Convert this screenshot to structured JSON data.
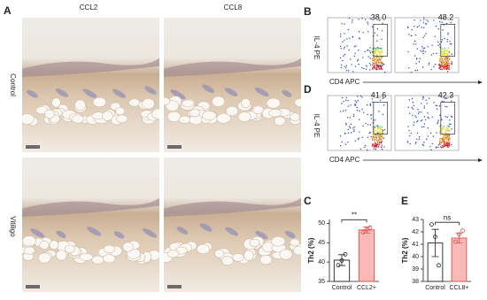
{
  "histology": {
    "panel": "A",
    "columns": [
      "CCL2",
      "CCL8"
    ],
    "rows": [
      "Control",
      "Vitiligo"
    ]
  },
  "flow": [
    {
      "panel": "B",
      "gates": [
        "38.0",
        "48.2"
      ],
      "x_label": "CD4  APC",
      "y_label": "IL-4 PE"
    },
    {
      "panel": "D",
      "gates": [
        "41.6",
        "42.3"
      ],
      "x_label": "CD4  APC",
      "y_label": "IL-4 PE"
    }
  ],
  "chart_data": [
    {
      "type": "bar",
      "panel": "C",
      "y_label": "Th2 (%)",
      "categories": [
        "Control",
        "CCL2+"
      ],
      "values": [
        40.5,
        48.3
      ],
      "errors": [
        1.4,
        0.8
      ],
      "points": [
        [
          39.2,
          40.4,
          42.0
        ],
        [
          47.7,
          48.4,
          48.9
        ]
      ],
      "colors": [
        "#ffffff",
        "#f9b9b7"
      ],
      "edge_colors": [
        "#222222",
        "#e0504d"
      ],
      "ylim": [
        35,
        51
      ],
      "yticks": [
        35,
        40,
        45,
        50
      ],
      "annotation": "**"
    },
    {
      "type": "bar",
      "panel": "E",
      "y_label": "Th2 (%)",
      "categories": [
        "Control",
        "CCL8+"
      ],
      "values": [
        41.1,
        41.5
      ],
      "errors": [
        1.1,
        0.4
      ],
      "points": [
        [
          42.6,
          41.6,
          39.3
        ],
        [
          41.2,
          41.8,
          42.1
        ]
      ],
      "colors": [
        "#ffffff",
        "#f9b9b7"
      ],
      "edge_colors": [
        "#222222",
        "#e0504d"
      ],
      "ylim": [
        38,
        43
      ],
      "yticks": [
        38,
        39,
        40,
        41,
        42,
        43
      ],
      "annotation": "ns"
    }
  ]
}
